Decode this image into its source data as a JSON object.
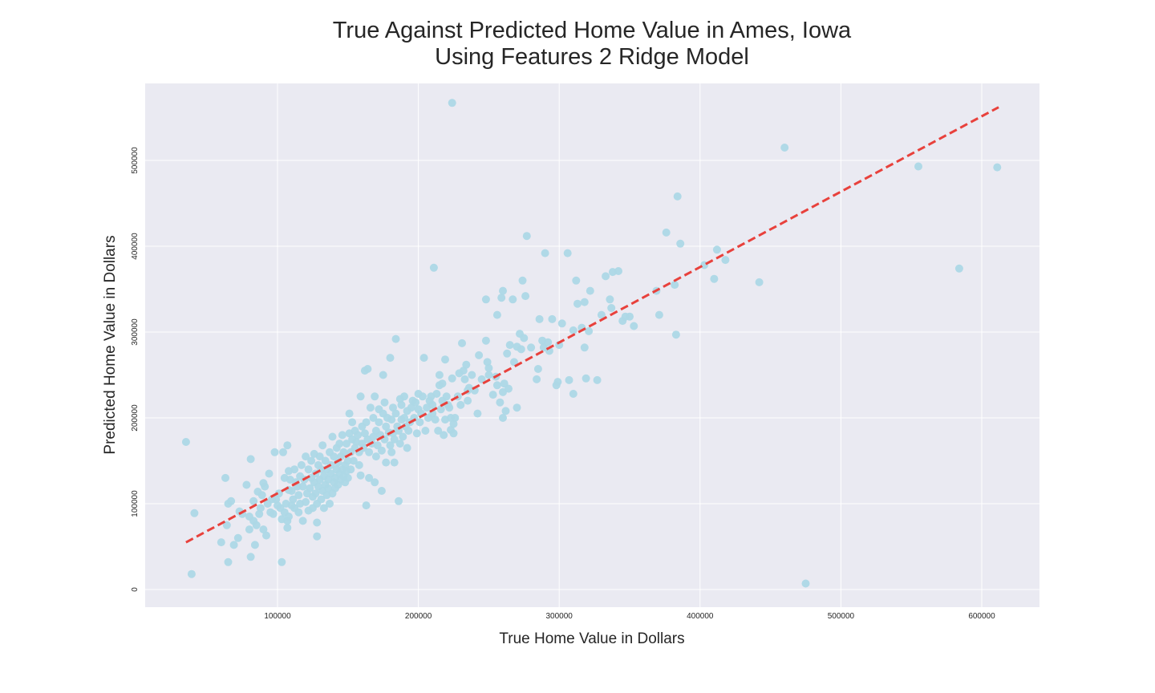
{
  "chart_data": {
    "type": "scatter",
    "title_lines": [
      "True Against Predicted Home Value in Ames, Iowa",
      "Using Features 2 Ridge Model"
    ],
    "xlabel": "True Home Value in Dollars",
    "ylabel": "Predicted Home Value in Dollars",
    "xlim": [
      6000,
      640000
    ],
    "ylim": [
      -20000,
      590000
    ],
    "xticks": [
      100000,
      200000,
      300000,
      400000,
      500000,
      600000
    ],
    "yticks": [
      0,
      100000,
      200000,
      300000,
      400000,
      500000
    ],
    "grid": true,
    "background": "#eaeaf2",
    "point_color": "#add8e6",
    "line_color": "#e8413c",
    "reference_line": {
      "x": [
        35000,
        612000
      ],
      "y": [
        55000,
        562000
      ],
      "style": "dashed"
    },
    "points": [
      [
        35000,
        172000
      ],
      [
        39000,
        18000
      ],
      [
        41000,
        89000
      ],
      [
        60000,
        55000
      ],
      [
        63000,
        130000
      ],
      [
        64000,
        75000
      ],
      [
        65000,
        100000
      ],
      [
        65000,
        32000
      ],
      [
        67000,
        103000
      ],
      [
        69000,
        52000
      ],
      [
        72000,
        60000
      ],
      [
        73000,
        91000
      ],
      [
        75000,
        88000
      ],
      [
        78000,
        122000
      ],
      [
        80000,
        85000
      ],
      [
        80000,
        70000
      ],
      [
        81000,
        152000
      ],
      [
        81000,
        38000
      ],
      [
        83000,
        103000
      ],
      [
        83000,
        80000
      ],
      [
        84000,
        52000
      ],
      [
        85000,
        75000
      ],
      [
        86000,
        114000
      ],
      [
        87000,
        88000
      ],
      [
        88000,
        95000
      ],
      [
        89000,
        110000
      ],
      [
        90000,
        70000
      ],
      [
        90000,
        124000
      ],
      [
        91000,
        120000
      ],
      [
        92000,
        63000
      ],
      [
        93000,
        100000
      ],
      [
        94000,
        135000
      ],
      [
        95000,
        90000
      ],
      [
        96000,
        105000
      ],
      [
        97000,
        88000
      ],
      [
        98000,
        160000
      ],
      [
        99000,
        105000
      ],
      [
        100000,
        98000
      ],
      [
        101000,
        112000
      ],
      [
        102000,
        95000
      ],
      [
        103000,
        82000
      ],
      [
        103000,
        32000
      ],
      [
        104000,
        160000
      ],
      [
        105000,
        90000
      ],
      [
        105000,
        130000
      ],
      [
        106000,
        100000
      ],
      [
        107000,
        72000
      ],
      [
        107000,
        80000
      ],
      [
        107000,
        168000
      ],
      [
        108000,
        85000
      ],
      [
        108000,
        116000
      ],
      [
        108000,
        138000
      ],
      [
        109000,
        128000
      ],
      [
        110000,
        98000
      ],
      [
        110000,
        115000
      ],
      [
        111000,
        105000
      ],
      [
        112000,
        95000
      ],
      [
        112000,
        140000
      ],
      [
        113000,
        125000
      ],
      [
        114000,
        120000
      ],
      [
        115000,
        110000
      ],
      [
        115000,
        90000
      ],
      [
        116000,
        100000
      ],
      [
        116000,
        132000
      ],
      [
        117000,
        145000
      ],
      [
        118000,
        80000
      ],
      [
        118000,
        120000
      ],
      [
        119000,
        128000
      ],
      [
        120000,
        155000
      ],
      [
        120000,
        102000
      ],
      [
        121000,
        112000
      ],
      [
        122000,
        140000
      ],
      [
        122000,
        92000
      ],
      [
        123000,
        118000
      ],
      [
        124000,
        130000
      ],
      [
        124000,
        150000
      ],
      [
        125000,
        108000
      ],
      [
        125000,
        95000
      ],
      [
        126000,
        158000
      ],
      [
        126000,
        125000
      ],
      [
        127000,
        112000
      ],
      [
        127000,
        135000
      ],
      [
        128000,
        100000
      ],
      [
        128000,
        78000
      ],
      [
        128000,
        62000
      ],
      [
        129000,
        145000
      ],
      [
        129000,
        120000
      ],
      [
        130000,
        155000
      ],
      [
        130000,
        128000
      ],
      [
        131000,
        105000
      ],
      [
        131000,
        140000
      ],
      [
        132000,
        168000
      ],
      [
        132000,
        115000
      ],
      [
        133000,
        95000
      ],
      [
        133000,
        132000
      ],
      [
        134000,
        122000
      ],
      [
        134000,
        150000
      ],
      [
        135000,
        110000
      ],
      [
        135000,
        140000
      ],
      [
        136000,
        118000
      ],
      [
        136000,
        128000
      ],
      [
        137000,
        100000
      ],
      [
        137000,
        160000
      ],
      [
        138000,
        135000
      ],
      [
        138000,
        145000
      ],
      [
        139000,
        112000
      ],
      [
        139000,
        178000
      ],
      [
        140000,
        125000
      ],
      [
        140000,
        155000
      ],
      [
        141000,
        130000
      ],
      [
        141000,
        118000
      ],
      [
        142000,
        140000
      ],
      [
        142000,
        165000
      ],
      [
        143000,
        122000
      ],
      [
        143000,
        148000
      ],
      [
        144000,
        135000
      ],
      [
        144000,
        170000
      ],
      [
        145000,
        128000
      ],
      [
        145000,
        155000
      ],
      [
        146000,
        140000
      ],
      [
        146000,
        180000
      ],
      [
        147000,
        132000
      ],
      [
        147000,
        160000
      ],
      [
        148000,
        125000
      ],
      [
        148000,
        145000
      ],
      [
        149000,
        170000
      ],
      [
        149000,
        138000
      ],
      [
        150000,
        150000
      ],
      [
        150000,
        130000
      ],
      [
        151000,
        205000
      ],
      [
        151000,
        182000
      ],
      [
        152000,
        160000
      ],
      [
        152000,
        140000
      ],
      [
        153000,
        175000
      ],
      [
        153000,
        195000
      ],
      [
        154000,
        150000
      ],
      [
        155000,
        165000
      ],
      [
        155000,
        185000
      ],
      [
        156000,
        172000
      ],
      [
        157000,
        180000
      ],
      [
        158000,
        145000
      ],
      [
        158000,
        160000
      ],
      [
        159000,
        133000
      ],
      [
        159000,
        225000
      ],
      [
        160000,
        190000
      ],
      [
        160000,
        170000
      ],
      [
        161000,
        165000
      ],
      [
        162000,
        182000
      ],
      [
        162000,
        255000
      ],
      [
        163000,
        98000
      ],
      [
        163000,
        195000
      ],
      [
        164000,
        257000
      ],
      [
        164000,
        175000
      ],
      [
        165000,
        160000
      ],
      [
        165000,
        130000
      ],
      [
        166000,
        212000
      ],
      [
        167000,
        170000
      ],
      [
        168000,
        200000
      ],
      [
        168000,
        178000
      ],
      [
        169000,
        225000
      ],
      [
        169000,
        125000
      ],
      [
        170000,
        185000
      ],
      [
        170000,
        155000
      ],
      [
        171000,
        168000
      ],
      [
        172000,
        195000
      ],
      [
        172000,
        210000
      ],
      [
        173000,
        180000
      ],
      [
        174000,
        162000
      ],
      [
        174000,
        115000
      ],
      [
        175000,
        250000
      ],
      [
        175000,
        205000
      ],
      [
        176000,
        175000
      ],
      [
        176000,
        218000
      ],
      [
        177000,
        190000
      ],
      [
        177000,
        148000
      ],
      [
        178000,
        200000
      ],
      [
        179000,
        183000
      ],
      [
        180000,
        270000
      ],
      [
        180000,
        168000
      ],
      [
        181000,
        198000
      ],
      [
        181000,
        160000
      ],
      [
        182000,
        182000
      ],
      [
        182000,
        212000
      ],
      [
        183000,
        175000
      ],
      [
        183000,
        148000
      ],
      [
        184000,
        205000
      ],
      [
        184000,
        292000
      ],
      [
        185000,
        190000
      ],
      [
        186000,
        185000
      ],
      [
        186000,
        103000
      ],
      [
        187000,
        170000
      ],
      [
        187000,
        222000
      ],
      [
        188000,
        198000
      ],
      [
        188000,
        215000
      ],
      [
        189000,
        178000
      ],
      [
        190000,
        200000
      ],
      [
        190000,
        225000
      ],
      [
        191000,
        190000
      ],
      [
        192000,
        165000
      ],
      [
        192000,
        208000
      ],
      [
        193000,
        185000
      ],
      [
        194000,
        195000
      ],
      [
        195000,
        212000
      ],
      [
        196000,
        220000
      ],
      [
        197000,
        200000
      ],
      [
        198000,
        218000
      ],
      [
        199000,
        182000
      ],
      [
        200000,
        210000
      ],
      [
        200000,
        228000
      ],
      [
        201000,
        195000
      ],
      [
        202000,
        205000
      ],
      [
        203000,
        225000
      ],
      [
        204000,
        270000
      ],
      [
        205000,
        185000
      ],
      [
        206000,
        212000
      ],
      [
        207000,
        200000
      ],
      [
        208000,
        220000
      ],
      [
        209000,
        225000
      ],
      [
        210000,
        205000
      ],
      [
        210000,
        215000
      ],
      [
        211000,
        375000
      ],
      [
        212000,
        198000
      ],
      [
        213000,
        228000
      ],
      [
        214000,
        185000
      ],
      [
        215000,
        238000
      ],
      [
        215000,
        250000
      ],
      [
        216000,
        210000
      ],
      [
        217000,
        220000
      ],
      [
        217000,
        240000
      ],
      [
        218000,
        180000
      ],
      [
        219000,
        268000
      ],
      [
        219000,
        198000
      ],
      [
        220000,
        225000
      ],
      [
        221000,
        215000
      ],
      [
        222000,
        212000
      ],
      [
        223000,
        200000
      ],
      [
        223000,
        186000
      ],
      [
        224000,
        567000
      ],
      [
        224000,
        246000
      ],
      [
        225000,
        193000
      ],
      [
        225000,
        182000
      ],
      [
        226000,
        200000
      ],
      [
        228000,
        225000
      ],
      [
        229000,
        252000
      ],
      [
        230000,
        215000
      ],
      [
        231000,
        287000
      ],
      [
        232000,
        255000
      ],
      [
        233000,
        245000
      ],
      [
        234000,
        262000
      ],
      [
        235000,
        232000
      ],
      [
        235000,
        220000
      ],
      [
        236000,
        235000
      ],
      [
        238000,
        250000
      ],
      [
        240000,
        232000
      ],
      [
        242000,
        205000
      ],
      [
        243000,
        273000
      ],
      [
        245000,
        245000
      ],
      [
        248000,
        290000
      ],
      [
        248000,
        338000
      ],
      [
        249000,
        265000
      ],
      [
        250000,
        250000
      ],
      [
        250000,
        258000
      ],
      [
        253000,
        227000
      ],
      [
        255000,
        248000
      ],
      [
        256000,
        238000
      ],
      [
        256000,
        320000
      ],
      [
        258000,
        218000
      ],
      [
        259000,
        340000
      ],
      [
        260000,
        348000
      ],
      [
        260000,
        230000
      ],
      [
        260000,
        200000
      ],
      [
        261000,
        240000
      ],
      [
        262000,
        208000
      ],
      [
        263000,
        275000
      ],
      [
        264000,
        234000
      ],
      [
        265000,
        285000
      ],
      [
        267000,
        338000
      ],
      [
        268000,
        265000
      ],
      [
        270000,
        283000
      ],
      [
        270000,
        212000
      ],
      [
        272000,
        298000
      ],
      [
        273000,
        280000
      ],
      [
        274000,
        360000
      ],
      [
        275000,
        293000
      ],
      [
        276000,
        342000
      ],
      [
        277000,
        412000
      ],
      [
        280000,
        282000
      ],
      [
        284000,
        245000
      ],
      [
        285000,
        257000
      ],
      [
        286000,
        315000
      ],
      [
        288000,
        290000
      ],
      [
        289000,
        282000
      ],
      [
        290000,
        392000
      ],
      [
        292000,
        288000
      ],
      [
        293000,
        278000
      ],
      [
        295000,
        315000
      ],
      [
        298000,
        238000
      ],
      [
        299000,
        242000
      ],
      [
        300000,
        285000
      ],
      [
        302000,
        310000
      ],
      [
        306000,
        392000
      ],
      [
        307000,
        244000
      ],
      [
        310000,
        302000
      ],
      [
        310000,
        228000
      ],
      [
        312000,
        360000
      ],
      [
        313000,
        333000
      ],
      [
        316000,
        305000
      ],
      [
        318000,
        335000
      ],
      [
        318000,
        282000
      ],
      [
        319000,
        246000
      ],
      [
        321000,
        301000
      ],
      [
        322000,
        348000
      ],
      [
        327000,
        244000
      ],
      [
        330000,
        320000
      ],
      [
        333000,
        365000
      ],
      [
        336000,
        338000
      ],
      [
        337000,
        328000
      ],
      [
        338000,
        370000
      ],
      [
        342000,
        371000
      ],
      [
        345000,
        313000
      ],
      [
        347000,
        318000
      ],
      [
        350000,
        318000
      ],
      [
        353000,
        307000
      ],
      [
        369000,
        348000
      ],
      [
        371000,
        320000
      ],
      [
        376000,
        416000
      ],
      [
        382000,
        355000
      ],
      [
        383000,
        297000
      ],
      [
        384000,
        458000
      ],
      [
        386000,
        403000
      ],
      [
        403000,
        378000
      ],
      [
        410000,
        362000
      ],
      [
        412000,
        396000
      ],
      [
        418000,
        384000
      ],
      [
        442000,
        358000
      ],
      [
        460000,
        515000
      ],
      [
        475000,
        7000
      ],
      [
        555000,
        493000
      ],
      [
        584000,
        374000
      ],
      [
        611000,
        492000
      ]
    ]
  }
}
